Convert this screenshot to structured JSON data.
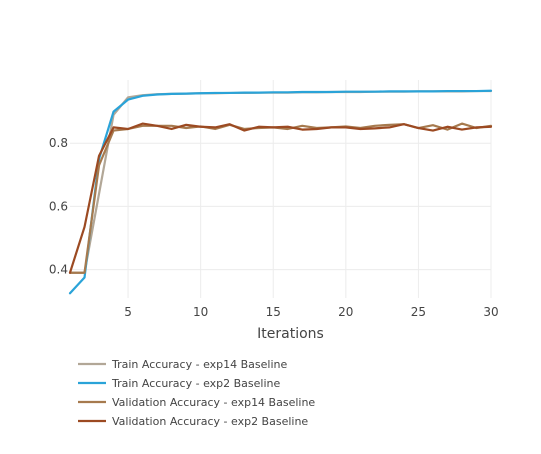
{
  "chart_data": {
    "type": "line",
    "xlabel": "Iterations",
    "ylabel": "",
    "xlim": [
      1,
      30
    ],
    "ylim": [
      0.31,
      1.0
    ],
    "x_ticks": [
      5,
      10,
      15,
      20,
      25,
      30
    ],
    "y_ticks": [
      0.4,
      0.6,
      0.8
    ],
    "grid": true,
    "legend_position": "bottom-left",
    "x": [
      1,
      2,
      3,
      4,
      5,
      6,
      7,
      8,
      9,
      10,
      11,
      12,
      13,
      14,
      15,
      16,
      17,
      18,
      19,
      20,
      21,
      22,
      23,
      24,
      25,
      26,
      27,
      28,
      29,
      30
    ],
    "series": [
      {
        "name": "Train Accuracy - exp14 Baseline",
        "color": "#b2a797",
        "values": [
          0.39,
          0.39,
          0.64,
          0.89,
          0.945,
          0.952,
          0.955,
          0.956,
          0.957,
          0.958,
          0.958,
          0.959,
          0.959,
          0.96,
          0.96,
          0.96,
          0.961,
          0.961,
          0.962,
          0.962,
          0.962,
          0.963,
          0.963,
          0.963,
          0.964,
          0.964,
          0.964,
          0.964,
          0.965,
          0.965
        ]
      },
      {
        "name": "Train Accuracy - exp2 Baseline",
        "color": "#2aa3d8",
        "values": [
          0.325,
          0.375,
          0.75,
          0.9,
          0.938,
          0.95,
          0.954,
          0.956,
          0.957,
          0.958,
          0.959,
          0.959,
          0.96,
          0.96,
          0.961,
          0.961,
          0.962,
          0.962,
          0.962,
          0.963,
          0.963,
          0.963,
          0.964,
          0.964,
          0.964,
          0.964,
          0.965,
          0.965,
          0.965,
          0.966
        ]
      },
      {
        "name": "Validation Accuracy - exp14 Baseline",
        "color": "#a67a4e",
        "values": [
          0.39,
          0.39,
          0.73,
          0.84,
          0.845,
          0.855,
          0.855,
          0.855,
          0.848,
          0.853,
          0.845,
          0.858,
          0.845,
          0.848,
          0.85,
          0.845,
          0.855,
          0.848,
          0.85,
          0.853,
          0.848,
          0.855,
          0.858,
          0.86,
          0.848,
          0.857,
          0.843,
          0.862,
          0.848,
          0.855
        ]
      },
      {
        "name": "Validation Accuracy - exp2 Baseline",
        "color": "#9c4a22",
        "values": [
          0.39,
          0.535,
          0.76,
          0.85,
          0.845,
          0.862,
          0.855,
          0.845,
          0.858,
          0.852,
          0.85,
          0.86,
          0.84,
          0.852,
          0.85,
          0.852,
          0.843,
          0.845,
          0.85,
          0.85,
          0.845,
          0.847,
          0.85,
          0.86,
          0.848,
          0.84,
          0.852,
          0.843,
          0.85,
          0.852
        ]
      }
    ]
  }
}
